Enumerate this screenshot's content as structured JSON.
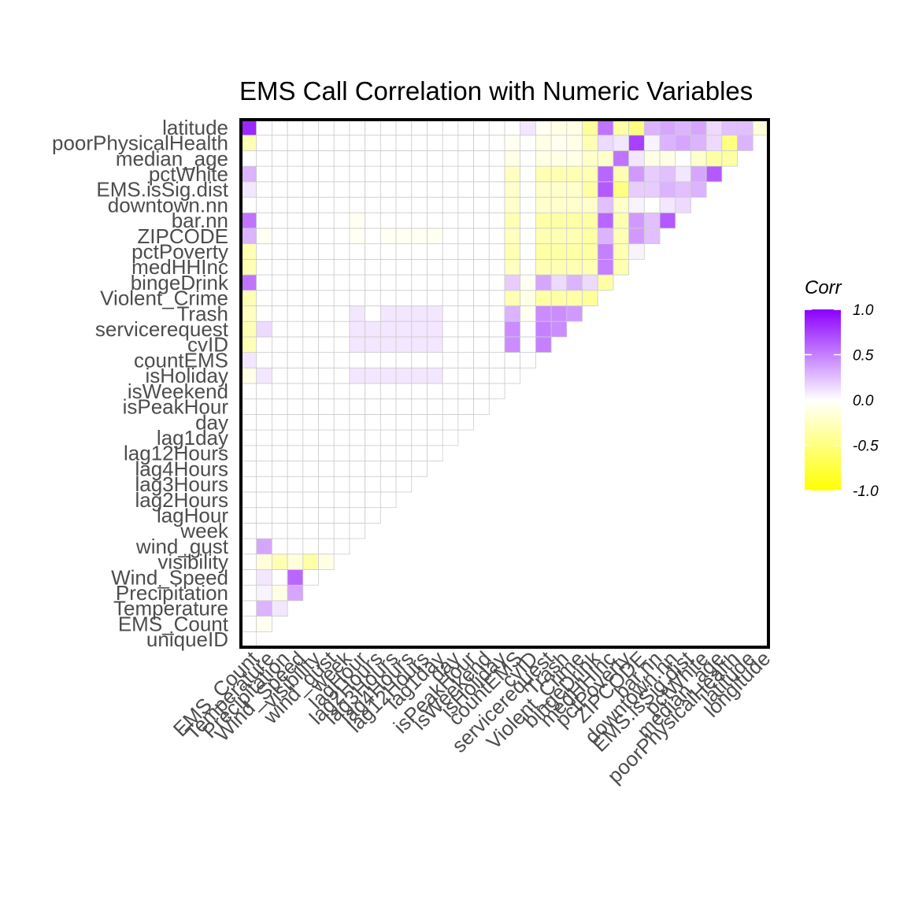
{
  "chart_data": {
    "type": "heatmap",
    "title": "EMS Call Correlation with Numeric Variables",
    "x_labels": [
      "EMS_Count",
      "Temperature",
      "Precipitation",
      "Wind_Speed",
      "visibility",
      "wind_gust",
      "week",
      "lagHour",
      "lag2Hours",
      "lag3Hours",
      "lag4Hours",
      "lag12Hours",
      "lag1day",
      "day",
      "isPeakHour",
      "isWeekend",
      "isHoliday",
      "countEMS",
      "cvID",
      "servicerequest",
      "Trash",
      "Violent_Crime",
      "bingeDrink",
      "medHHInc",
      "pctPoverty",
      "ZIPCODE",
      "bar.nn",
      "downtown.nn",
      "EMS.isSig.dist",
      "pctWhite",
      "median_age",
      "poorPhysicalHealth",
      "latitude",
      "longitude"
    ],
    "y_labels": [
      "uniqueID",
      "EMS_Count",
      "Temperature",
      "Precipitation",
      "Wind_Speed",
      "visibility",
      "wind_gust",
      "week",
      "lagHour",
      "lag2Hours",
      "lag3Hours",
      "lag4Hours",
      "lag12Hours",
      "lag1day",
      "day",
      "isPeakHour",
      "isWeekend",
      "isHoliday",
      "countEMS",
      "cvID",
      "servicerequest",
      "Trash",
      "Violent_Crime",
      "bingeDrink",
      "medHHInc",
      "pctPoverty",
      "ZIPCODE",
      "bar.nn",
      "downtown.nn",
      "EMS.isSig.dist",
      "pctWhite",
      "median_age",
      "poorPhysicalHealth",
      "latitude"
    ],
    "value_range": [
      -1,
      1
    ],
    "legend": {
      "title": "Corr",
      "ticks": [
        "1.0",
        "0.5",
        "0.0",
        "-0.5",
        "-1.0"
      ],
      "tick_values": [
        1,
        0.5,
        0,
        -0.5,
        -1
      ],
      "colors": {
        "low": "#FFFF00",
        "mid": "#FFFFFF",
        "high": "#8B00FF"
      },
      "placement": "right"
    },
    "grid": true,
    "values": [
      [
        0
      ],
      [
        0,
        -0.05
      ],
      [
        0,
        0.3,
        0.1
      ],
      [
        0,
        0.05,
        -0.1,
        0.35
      ],
      [
        0,
        0.1,
        0,
        0.6,
        0
      ],
      [
        0,
        -0.15,
        -0.3,
        -0.15,
        -0.35,
        -0.1
      ],
      [
        0,
        0.35,
        0,
        0,
        0,
        0,
        0
      ],
      [
        0,
        0,
        0,
        0,
        0,
        0,
        0,
        0
      ],
      [
        0,
        0,
        0,
        0,
        0,
        0,
        0,
        0,
        0
      ],
      [
        0,
        0,
        0,
        0,
        0,
        0,
        0,
        0,
        0,
        0
      ],
      [
        0,
        0,
        0,
        0,
        0,
        0,
        0,
        0,
        0,
        0,
        0
      ],
      [
        0,
        0,
        0,
        0,
        0,
        0,
        0,
        0,
        0,
        0,
        0,
        0
      ],
      [
        0,
        0,
        0,
        0,
        0,
        0,
        0,
        0,
        0,
        0,
        0,
        0,
        0
      ],
      [
        0,
        0,
        0,
        0,
        0,
        0,
        0,
        0,
        0,
        0,
        0,
        0,
        0,
        0
      ],
      [
        0,
        0,
        0,
        0,
        0,
        0,
        0,
        0,
        0,
        0,
        0,
        0,
        0,
        0,
        0
      ],
      [
        0,
        0,
        0,
        0,
        0,
        0,
        0,
        0,
        0,
        0,
        0,
        0,
        0,
        0,
        0,
        0
      ],
      [
        0,
        0,
        0,
        0,
        0,
        0,
        0,
        0,
        0,
        0,
        0,
        0,
        0,
        0,
        0,
        0,
        0
      ],
      [
        -0.1,
        0.1,
        0,
        0,
        0,
        0,
        0,
        0.1,
        0.1,
        0.1,
        0.1,
        0.1,
        0.1,
        0,
        0,
        0,
        0,
        0
      ],
      [
        0.1,
        0,
        0,
        0,
        0,
        0,
        0,
        0,
        0,
        0,
        0,
        0,
        0,
        0,
        0,
        0,
        0,
        0,
        0
      ],
      [
        -0.3,
        0,
        0,
        0,
        0,
        0,
        0,
        0.1,
        0.1,
        0.1,
        0.1,
        0.1,
        0.1,
        0,
        0,
        0,
        0,
        0.45,
        0,
        0.5
      ],
      [
        -0.3,
        0.15,
        0,
        0,
        0,
        0,
        0,
        0.1,
        0.1,
        0.1,
        0.1,
        0.1,
        0.1,
        0,
        0,
        0,
        0,
        0.45,
        0,
        0.5,
        0.45
      ],
      [
        -0.25,
        0,
        0,
        0,
        0,
        0,
        0,
        0.1,
        0,
        0.1,
        0.1,
        0.1,
        0.1,
        0,
        0,
        0,
        0,
        0.3,
        -0.05,
        0.45,
        0.45,
        0.4
      ],
      [
        -0.3,
        0,
        0,
        0,
        0,
        0,
        0,
        0,
        0,
        0,
        0,
        0,
        0,
        0,
        0,
        0,
        0,
        -0.3,
        -0.1,
        -0.35,
        -0.35,
        -0.35,
        -0.4
      ],
      [
        0.55,
        0,
        0,
        0,
        0,
        0,
        0,
        0,
        0,
        0,
        0,
        0,
        0,
        0,
        0,
        0,
        0,
        0.2,
        -0.05,
        0.35,
        0.15,
        0.3,
        0.15,
        -0.35
      ],
      [
        -0.3,
        0,
        0,
        0,
        0,
        0,
        0,
        0,
        0,
        0,
        0,
        0,
        0,
        0,
        0,
        0,
        0,
        -0.25,
        0,
        -0.3,
        -0.3,
        -0.3,
        -0.3,
        0.5,
        -0.3
      ],
      [
        -0.3,
        0,
        0,
        0,
        0,
        0,
        0,
        0,
        0,
        0,
        0,
        0,
        0,
        0,
        0,
        0,
        0,
        -0.3,
        0,
        -0.35,
        -0.35,
        -0.35,
        -0.35,
        0.5,
        -0.3,
        0.05
      ],
      [
        0.3,
        -0.05,
        0,
        0,
        0,
        0,
        0,
        -0.05,
        0,
        -0.05,
        -0.05,
        -0.05,
        -0.05,
        0,
        0,
        0,
        0,
        -0.25,
        0,
        -0.3,
        -0.3,
        -0.3,
        -0.35,
        0.3,
        -0.3,
        0.4,
        0.25
      ],
      [
        0.55,
        0,
        0,
        0,
        0,
        0,
        0,
        -0.05,
        0,
        0,
        0,
        0,
        0,
        0,
        0,
        0,
        0,
        -0.3,
        0,
        -0.35,
        -0.35,
        -0.35,
        -0.35,
        0.6,
        -0.3,
        0.4,
        0.25,
        0.65
      ],
      [
        0,
        0,
        0,
        0,
        0,
        0,
        0,
        0,
        0,
        0,
        0,
        0,
        0,
        0,
        0,
        0,
        0,
        -0.2,
        0,
        -0.2,
        -0.2,
        -0.2,
        -0.2,
        0.25,
        -0.2,
        0.05,
        0,
        0.1,
        0.15
      ],
      [
        0.1,
        0,
        0,
        0,
        0,
        0,
        0,
        0,
        0,
        0,
        0,
        0,
        0,
        0,
        0,
        0,
        0,
        -0.2,
        0,
        -0.2,
        -0.2,
        -0.2,
        -0.35,
        0.65,
        -0.5,
        0.2,
        0.2,
        0.3,
        0.25,
        0.3
      ],
      [
        0.3,
        0,
        0,
        0,
        0,
        0,
        0,
        0,
        0,
        0,
        0,
        0,
        0,
        0,
        0,
        0,
        0,
        -0.25,
        0,
        -0.3,
        -0.3,
        -0.3,
        -0.3,
        0.6,
        -0.3,
        0.4,
        0.2,
        0.25,
        0.1,
        0.35,
        0.65
      ],
      [
        0,
        0,
        0,
        0,
        0,
        0,
        0,
        0,
        0,
        0,
        0,
        0,
        0,
        0,
        0,
        0,
        0,
        -0.1,
        0,
        -0.1,
        -0.1,
        -0.1,
        -0.2,
        -0.2,
        0.55,
        0.1,
        -0.1,
        -0.1,
        0,
        -0.2,
        -0.35,
        -0.35
      ],
      [
        -0.3,
        0,
        0,
        0,
        0,
        0,
        0,
        0,
        0,
        0,
        0,
        0,
        0,
        0,
        0,
        0,
        0,
        -0.05,
        0,
        -0.1,
        -0.05,
        -0.1,
        -0.3,
        0.15,
        0.1,
        0.75,
        0.05,
        0.3,
        0.35,
        0.3,
        0.15,
        -0.5,
        0.3
      ],
      [
        0.85,
        0,
        0,
        0,
        0,
        0,
        0,
        0,
        0,
        0,
        0,
        0,
        0,
        0,
        0,
        0,
        0,
        0,
        0.1,
        -0.05,
        -0.1,
        -0.1,
        -0.4,
        0.55,
        -0.35,
        -0.5,
        0.3,
        0.35,
        0.3,
        0.35,
        0.15,
        0.25,
        0.25,
        -0.15
      ]
    ]
  }
}
